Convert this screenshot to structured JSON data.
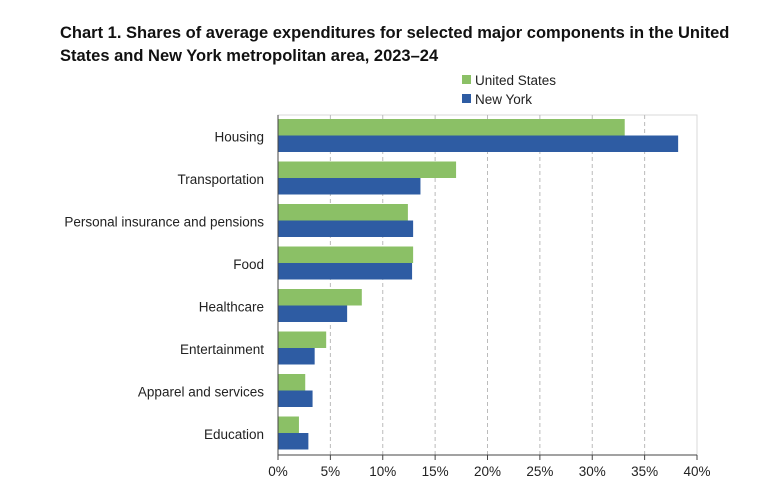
{
  "chart_data": {
    "type": "bar",
    "orientation": "horizontal",
    "title": "Chart 1. Shares of average expenditures for selected major components in the United States and New York metropolitan area, 2023–24",
    "categories": [
      "Housing",
      "Transportation",
      "Personal insurance and pensions",
      "Food",
      "Healthcare",
      "Entertainment",
      "Apparel and services",
      "Education"
    ],
    "series": [
      {
        "name": "United States",
        "color": "#8bc066",
        "values": [
          33.1,
          17.0,
          12.4,
          12.9,
          8.0,
          4.6,
          2.6,
          2.0
        ]
      },
      {
        "name": "New York",
        "color": "#2e5ca3",
        "values": [
          38.2,
          13.6,
          12.9,
          12.8,
          6.6,
          3.5,
          3.3,
          2.9
        ]
      }
    ],
    "xlim": [
      0,
      40
    ],
    "xticks": [
      "0%",
      "5%",
      "10%",
      "15%",
      "20%",
      "25%",
      "30%",
      "35%",
      "40%"
    ],
    "grid": "vertical dashed",
    "legend_position": "top"
  }
}
